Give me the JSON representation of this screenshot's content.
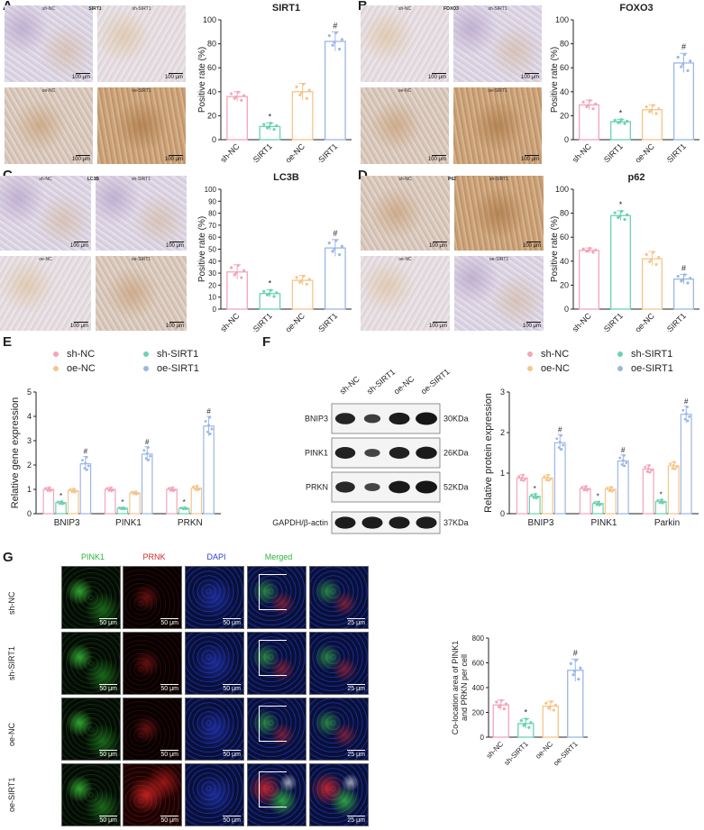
{
  "panel_letters": [
    "A",
    "B",
    "C",
    "D",
    "E",
    "F",
    "G"
  ],
  "units": {
    "scale_100": "100 μm",
    "scale_50": "50 μm",
    "scale_25": "25 μm"
  },
  "ihc_panels": [
    {
      "title": "SIRT1",
      "labels": [
        "sh-NC",
        "sh-SIRT1",
        "oe-NC",
        "oe-SIRT1"
      ]
    },
    {
      "title": "FOXO3",
      "labels": [
        "sh-NC",
        "sh-SIRT1",
        "oe-NC",
        "oe-SIRT1"
      ]
    },
    {
      "title": "LC3B",
      "labels": [
        "sh-NC",
        "sh-SIRT1",
        "oe-NC",
        "oe-SIRT1"
      ]
    },
    {
      "title": "P62",
      "labels": [
        "sh-NC",
        "sh-SIRT1",
        "oe-NC",
        "oe-SIRT1"
      ]
    }
  ],
  "colors": {
    "sh-NC": "#f4a6b8",
    "sh-SIRT1": "#6cd3b0",
    "oe-NC": "#f6c58a",
    "oe-SIRT1": "#9bb7e6"
  },
  "western": {
    "lanes": [
      "sh-NC",
      "sh-SIRT1",
      "oe-NC",
      "oe-SIRT1"
    ],
    "rows": [
      {
        "name": "BNIP3",
        "kda": "30KDa",
        "intensity": [
          0.8,
          0.4,
          0.9,
          1.0
        ]
      },
      {
        "name": "PINK1",
        "kda": "26KDa",
        "intensity": [
          0.85,
          0.3,
          0.85,
          0.95
        ]
      },
      {
        "name": "PRKN",
        "kda": "52KDa",
        "intensity": [
          0.75,
          0.3,
          0.95,
          1.0
        ]
      },
      {
        "name": "GAPDH/β-actin",
        "kda": "37KDa",
        "intensity": [
          0.9,
          0.9,
          0.9,
          0.9
        ]
      }
    ]
  },
  "fluor": {
    "channels": [
      {
        "name": "PINK1",
        "color": "#2fb43a"
      },
      {
        "name": "PRNK",
        "color": "#d02a2a"
      },
      {
        "name": "DAPI",
        "color": "#2a3fd0"
      },
      {
        "name": "Merged",
        "color": "#2fb43a"
      }
    ],
    "rows": [
      "sh-NC",
      "sh-SIRT1",
      "oe-NC",
      "oe-SIRT1"
    ]
  },
  "chart_data": [
    {
      "id": "A",
      "type": "bar",
      "title": "SIRT1",
      "ylabel": "Positive rate (%)",
      "categories": [
        "sh-NC",
        "sh-SIRT1",
        "oe-NC",
        "oe-SIRT1"
      ],
      "values": [
        36,
        11,
        40,
        82
      ],
      "errors": [
        4,
        3,
        7,
        8
      ],
      "ylim": [
        0,
        100
      ],
      "yticks": [
        0,
        20,
        40,
        60,
        80,
        100
      ],
      "markers": [
        "",
        "*",
        "",
        "#"
      ]
    },
    {
      "id": "B",
      "type": "bar",
      "title": "FOXO3",
      "ylabel": "Positive rate (%)",
      "categories": [
        "sh-NC",
        "sh-SIRT1",
        "oe-NC",
        "oe-SIRT1"
      ],
      "values": [
        29,
        15,
        25,
        64
      ],
      "errors": [
        4,
        2,
        4,
        8
      ],
      "ylim": [
        0,
        100
      ],
      "yticks": [
        0,
        20,
        40,
        60,
        80,
        100
      ],
      "markers": [
        "",
        "*",
        "",
        "#"
      ]
    },
    {
      "id": "C",
      "type": "bar",
      "title": "LC3B",
      "ylabel": "Positive rate (%)",
      "categories": [
        "sh-NC",
        "sh-SIRT1",
        "oe-NC",
        "oe-SIRT1"
      ],
      "values": [
        31,
        13,
        24,
        51
      ],
      "errors": [
        6,
        3,
        4,
        7
      ],
      "ylim": [
        0,
        100
      ],
      "yticks": [
        0,
        10,
        20,
        30,
        40,
        50,
        60,
        70,
        80,
        90,
        100
      ],
      "markers": [
        "",
        "*",
        "",
        "#"
      ]
    },
    {
      "id": "D",
      "type": "bar",
      "title": "p62",
      "ylabel": "Positive rate (%)",
      "categories": [
        "sh-NC",
        "sh-SIRT1",
        "oe-NC",
        "oe-SIRT1"
      ],
      "values": [
        49,
        78,
        42,
        25
      ],
      "errors": [
        2,
        4,
        6,
        4
      ],
      "ylim": [
        0,
        100
      ],
      "yticks": [
        0,
        20,
        40,
        60,
        80,
        100
      ],
      "markers": [
        "",
        "*",
        "",
        "#"
      ]
    },
    {
      "id": "E",
      "type": "bar",
      "ylabel": "Relative gene expression",
      "categories": [
        "BNIP3",
        "PINK1",
        "PRKN"
      ],
      "series": [
        {
          "name": "sh-NC",
          "values": [
            1.0,
            1.0,
            1.0
          ],
          "errors": [
            0.08,
            0.08,
            0.08
          ]
        },
        {
          "name": "sh-SIRT1",
          "values": [
            0.45,
            0.22,
            0.22
          ],
          "errors": [
            0.06,
            0.04,
            0.04
          ]
        },
        {
          "name": "oe-NC",
          "values": [
            0.95,
            0.85,
            1.05
          ],
          "errors": [
            0.08,
            0.06,
            0.1
          ]
        },
        {
          "name": "oe-SIRT1",
          "values": [
            2.05,
            2.45,
            3.6
          ],
          "errors": [
            0.3,
            0.3,
            0.4
          ]
        }
      ],
      "markers": [
        "",
        "*",
        "",
        "#"
      ],
      "ylim": [
        0,
        5
      ],
      "yticks": [
        0,
        1,
        2,
        3,
        4,
        5
      ],
      "legend": "top"
    },
    {
      "id": "F",
      "type": "bar",
      "ylabel": "Relative protein expression",
      "categories": [
        "BNIP3",
        "PINK1",
        "Parkin"
      ],
      "series": [
        {
          "name": "sh-NC",
          "values": [
            0.88,
            0.62,
            1.1
          ],
          "errors": [
            0.08,
            0.06,
            0.1
          ]
        },
        {
          "name": "sh-SIRT1",
          "values": [
            0.43,
            0.25,
            0.3
          ],
          "errors": [
            0.06,
            0.05,
            0.05
          ]
        },
        {
          "name": "oe-NC",
          "values": [
            0.88,
            0.6,
            1.18
          ],
          "errors": [
            0.08,
            0.06,
            0.1
          ]
        },
        {
          "name": "oe-SIRT1",
          "values": [
            1.75,
            1.3,
            2.45
          ],
          "errors": [
            0.2,
            0.15,
            0.2
          ]
        }
      ],
      "markers": [
        "",
        "*",
        "",
        "#"
      ],
      "ylim": [
        0,
        3
      ],
      "yticks": [
        0,
        1,
        2,
        3
      ],
      "legend": "top"
    },
    {
      "id": "G",
      "type": "bar",
      "ylabel": "Co-location area of PINK1 and PRKN per cell",
      "categories": [
        "sh-NC",
        "sh-SIRT1",
        "oe-NC",
        "oe-SIRT1"
      ],
      "values": [
        260,
        110,
        250,
        540
      ],
      "errors": [
        40,
        40,
        40,
        90
      ],
      "ylim": [
        0,
        800
      ],
      "yticks": [
        0,
        200,
        400,
        600,
        800
      ],
      "markers": [
        "",
        "*",
        "",
        "#"
      ]
    }
  ]
}
